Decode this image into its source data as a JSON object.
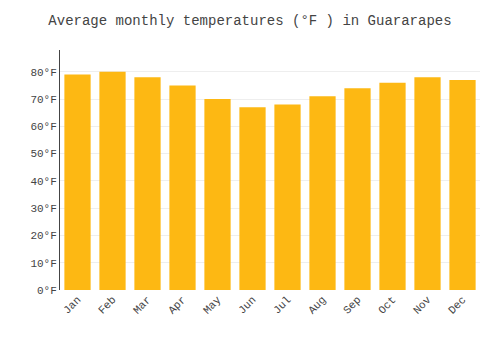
{
  "chart_data": {
    "type": "bar",
    "title": "Average monthly temperatures (°F ) in Guararapes",
    "categories": [
      "Jan",
      "Feb",
      "Mar",
      "Apr",
      "May",
      "Jun",
      "Jul",
      "Aug",
      "Sep",
      "Oct",
      "Nov",
      "Dec"
    ],
    "values": [
      79,
      80,
      78,
      75,
      70,
      67,
      68,
      71,
      74,
      76,
      78,
      77
    ],
    "color": "#FDB813",
    "ylim": [
      0,
      88
    ],
    "yticks": [
      {
        "value": 0,
        "label": "0°F"
      },
      {
        "value": 10,
        "label": "10°F"
      },
      {
        "value": 20,
        "label": "20°F"
      },
      {
        "value": 30,
        "label": "30°F"
      },
      {
        "value": 40,
        "label": "40°F"
      },
      {
        "value": 50,
        "label": "50°F"
      },
      {
        "value": 60,
        "label": "60°F"
      },
      {
        "value": 70,
        "label": "70°F"
      },
      {
        "value": 80,
        "label": "80°F"
      }
    ],
    "grid": true
  }
}
